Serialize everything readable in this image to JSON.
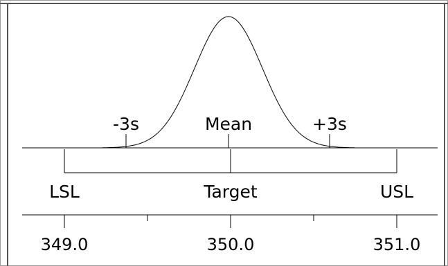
{
  "curve_labels": {
    "minus_3s": "-3s",
    "mean": "Mean",
    "plus_3s": "+3s"
  },
  "spec_labels": {
    "lsl": "LSL",
    "target": "Target",
    "usl": "USL"
  },
  "axis": {
    "ticks": [
      "349.0",
      "350.0",
      "351.0"
    ]
  }
}
